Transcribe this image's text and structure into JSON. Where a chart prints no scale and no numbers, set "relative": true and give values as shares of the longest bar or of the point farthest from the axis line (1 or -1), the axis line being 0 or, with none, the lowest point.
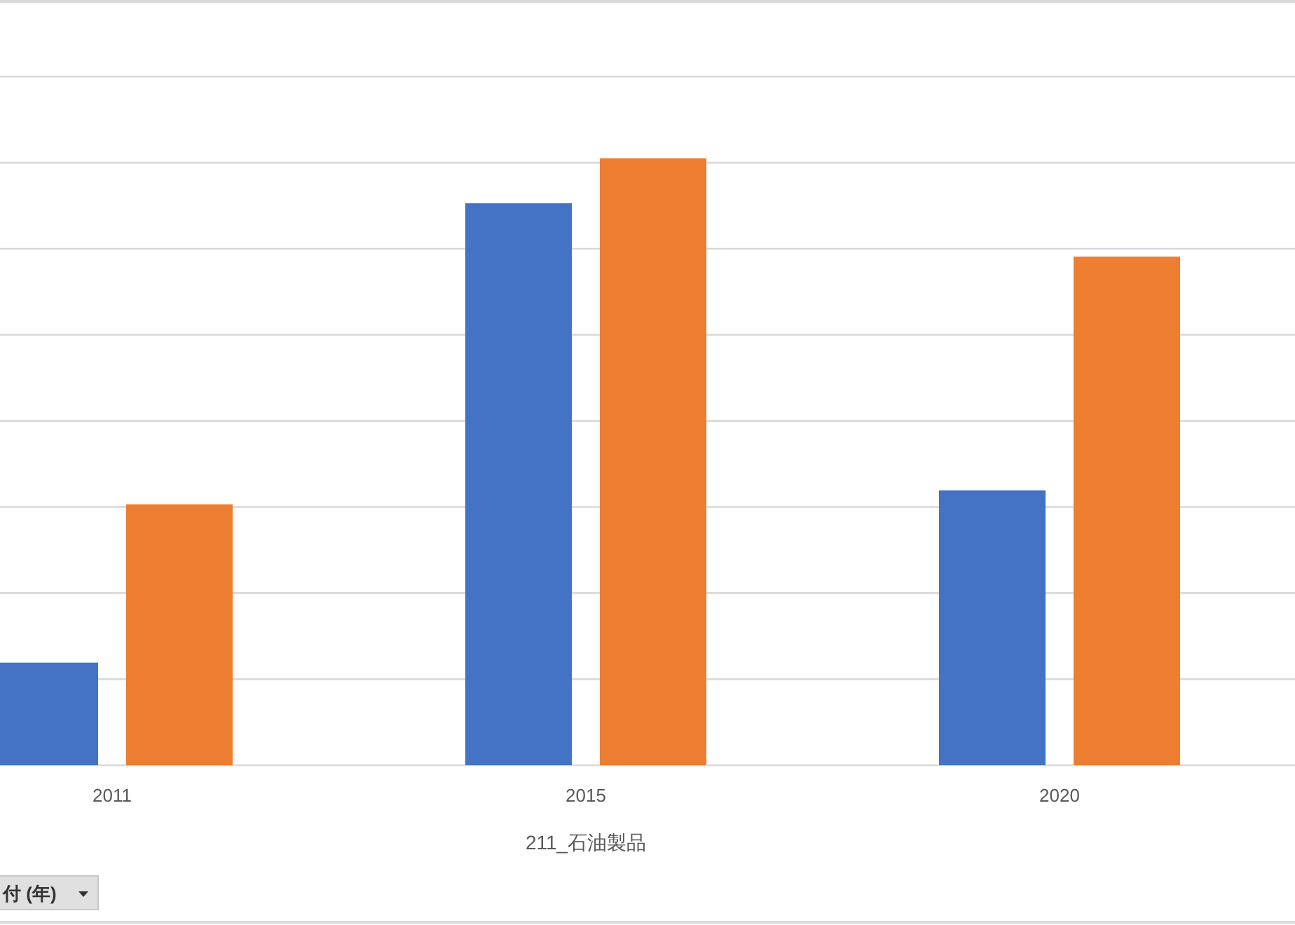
{
  "chart_data": {
    "type": "bar",
    "relative": true,
    "grid": true,
    "xlabel": "211_石油製品",
    "categories": [
      "2011",
      "2015",
      "2020"
    ],
    "series": [
      {
        "color": "#4472c4",
        "values": [
          0.169,
          0.926,
          0.453
        ]
      },
      {
        "color": "#ed7d31",
        "values": [
          0.43,
          1,
          0.838
        ]
      }
    ],
    "annotations": [
      "付 (年)"
    ]
  }
}
